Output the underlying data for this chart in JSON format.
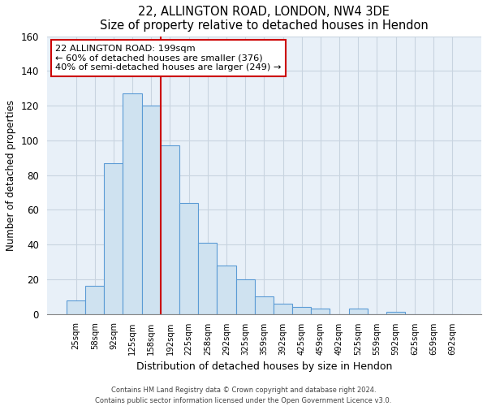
{
  "title": "22, ALLINGTON ROAD, LONDON, NW4 3DE",
  "subtitle": "Size of property relative to detached houses in Hendon",
  "xlabel": "Distribution of detached houses by size in Hendon",
  "ylabel": "Number of detached properties",
  "bar_labels": [
    "25sqm",
    "58sqm",
    "92sqm",
    "125sqm",
    "158sqm",
    "192sqm",
    "225sqm",
    "258sqm",
    "292sqm",
    "325sqm",
    "359sqm",
    "392sqm",
    "425sqm",
    "459sqm",
    "492sqm",
    "525sqm",
    "559sqm",
    "592sqm",
    "625sqm",
    "659sqm",
    "692sqm"
  ],
  "bar_values": [
    8,
    16,
    87,
    127,
    120,
    97,
    64,
    41,
    28,
    20,
    10,
    6,
    4,
    3,
    0,
    3,
    0,
    1,
    0,
    0,
    0
  ],
  "bar_color": "#cfe2f0",
  "bar_edge_color": "#5b9bd5",
  "highlight_bar_index": 5,
  "highlight_color": "#cc0000",
  "annotation_text": "22 ALLINGTON ROAD: 199sqm\n← 60% of detached houses are smaller (376)\n40% of semi-detached houses are larger (249) →",
  "annotation_box_color": "#ffffff",
  "annotation_box_edge": "#cc0000",
  "ylim": [
    0,
    160
  ],
  "yticks": [
    0,
    20,
    40,
    60,
    80,
    100,
    120,
    140,
    160
  ],
  "footer_line1": "Contains HM Land Registry data © Crown copyright and database right 2024.",
  "footer_line2": "Contains public sector information licensed under the Open Government Licence v3.0.",
  "background_color": "#e8f0f8",
  "grid_color": "#c8d4e0"
}
